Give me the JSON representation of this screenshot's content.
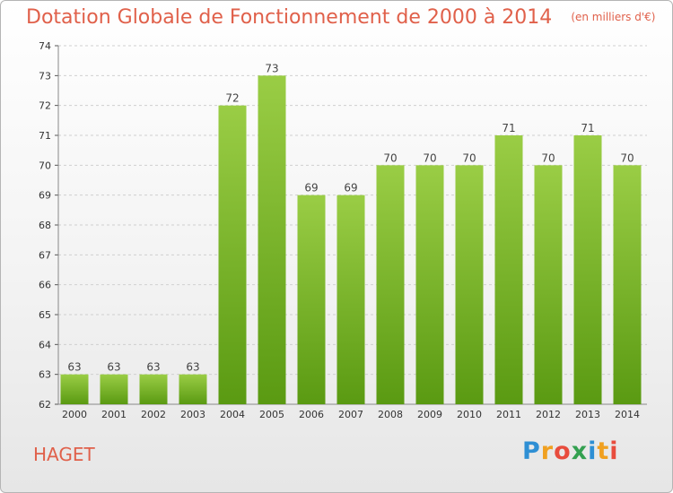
{
  "header": {
    "title": "Dotation Globale de Fonctionnement de 2000 à 2014",
    "unit": "(en milliers d'€)"
  },
  "footer": {
    "city": "HAGET",
    "logo": "Proxiti"
  },
  "colors": {
    "title": "#e0604a",
    "bar_top": "#9acd45",
    "bar_bottom": "#5a9a12",
    "grid": "#cfcfcf"
  },
  "chart_data": {
    "type": "bar",
    "title": "Dotation Globale de Fonctionnement de 2000 à 2014",
    "subtitle": "(en milliers d'€)",
    "categories": [
      "2000",
      "2001",
      "2002",
      "2003",
      "2004",
      "2005",
      "2006",
      "2007",
      "2008",
      "2009",
      "2010",
      "2011",
      "2012",
      "2013",
      "2014"
    ],
    "values": [
      63,
      63,
      63,
      63,
      72,
      73,
      69,
      69,
      70,
      70,
      70,
      71,
      70,
      71,
      70
    ],
    "xlabel": "",
    "ylabel": "",
    "ylim": [
      62,
      74
    ],
    "yticks": [
      62,
      63,
      64,
      65,
      66,
      67,
      68,
      69,
      70,
      71,
      72,
      73,
      74
    ],
    "grid": true,
    "data_labels": true
  }
}
